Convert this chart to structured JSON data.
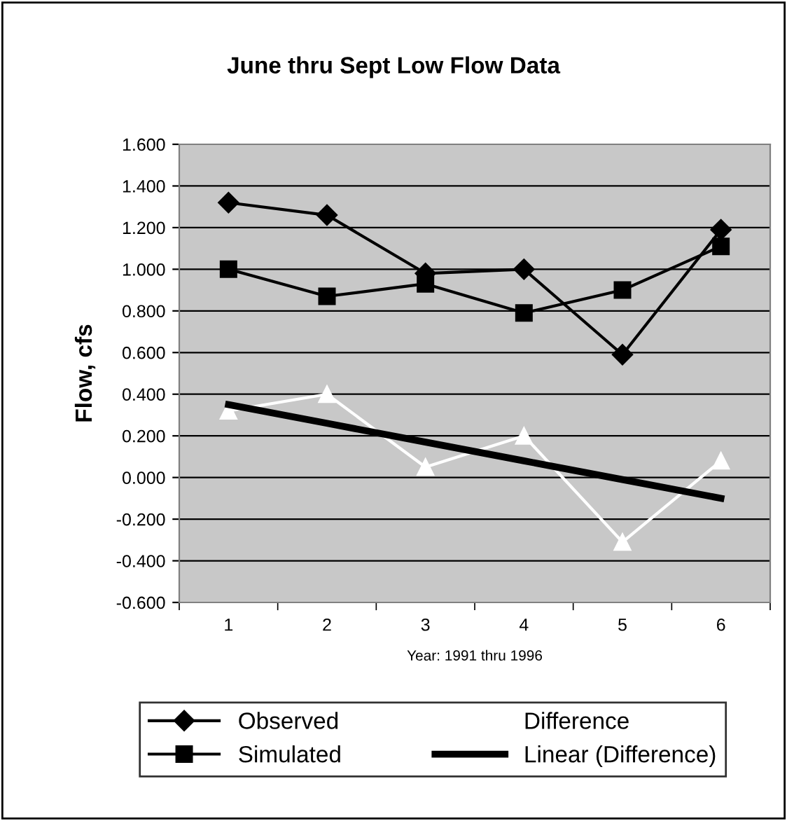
{
  "chart_data": {
    "type": "line",
    "title": "June thru Sept Low Flow Data",
    "xlabel": "Year: 1991 thru 1996",
    "ylabel": "Flow, cfs",
    "categories": [
      "1",
      "2",
      "3",
      "4",
      "5",
      "6"
    ],
    "series": [
      {
        "name": "Observed",
        "color": "#000000",
        "marker": "diamond",
        "values": [
          1.32,
          1.26,
          0.98,
          1.0,
          0.59,
          1.19
        ]
      },
      {
        "name": "Simulated",
        "color": "#000000",
        "marker": "square",
        "values": [
          1.0,
          0.87,
          0.93,
          0.79,
          0.9,
          1.11
        ]
      },
      {
        "name": "Difference",
        "color": "#ffffff",
        "marker": "triangle",
        "values": [
          0.32,
          0.4,
          0.05,
          0.2,
          -0.31,
          0.08
        ]
      },
      {
        "name": "Linear (Difference)",
        "color": "#000000",
        "marker": "none",
        "values": [
          0.35,
          0.26,
          0.17,
          0.08,
          -0.01,
          -0.1
        ]
      }
    ],
    "ylim": [
      -0.6,
      1.6
    ],
    "yticks": [
      {
        "value": -0.6,
        "label": "-0.600"
      },
      {
        "value": -0.4,
        "label": "-0.400"
      },
      {
        "value": -0.2,
        "label": "-0.200"
      },
      {
        "value": 0.0,
        "label": "0.000"
      },
      {
        "value": 0.2,
        "label": "0.200"
      },
      {
        "value": 0.4,
        "label": "0.400"
      },
      {
        "value": 0.6,
        "label": "0.600"
      },
      {
        "value": 0.8,
        "label": "0.800"
      },
      {
        "value": 1.0,
        "label": "1.000"
      },
      {
        "value": 1.2,
        "label": "1.200"
      },
      {
        "value": 1.4,
        "label": "1.400"
      },
      {
        "value": 1.6,
        "label": "1.600"
      }
    ],
    "grid": "y",
    "legend": "bottom"
  }
}
